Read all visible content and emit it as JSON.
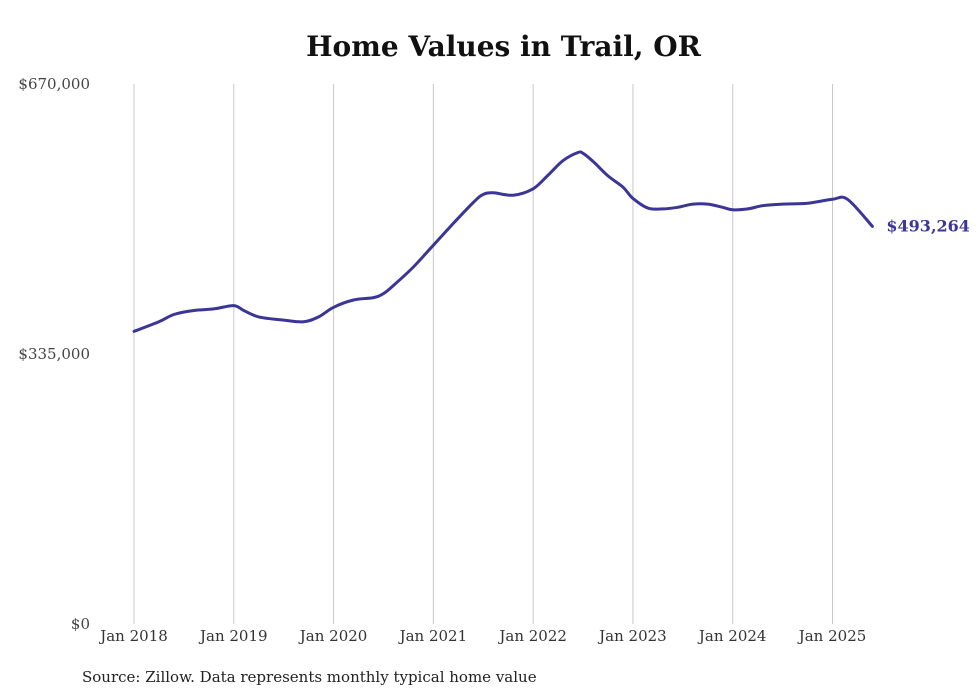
{
  "chart_data": {
    "type": "line",
    "title": "Home Values in Trail, OR",
    "xlabel": "",
    "ylabel": "",
    "ylim": [
      0,
      670000
    ],
    "y_ticks": [
      {
        "value": 670000,
        "label": "$670,000"
      },
      {
        "value": 335000,
        "label": "$335,000"
      },
      {
        "value": 0,
        "label": "$0"
      }
    ],
    "x_ticks": [
      {
        "value": 2018.0,
        "label": "Jan 2018"
      },
      {
        "value": 2019.0,
        "label": "Jan 2019"
      },
      {
        "value": 2020.0,
        "label": "Jan 2020"
      },
      {
        "value": 2021.0,
        "label": "Jan 2021"
      },
      {
        "value": 2022.0,
        "label": "Jan 2022"
      },
      {
        "value": 2023.0,
        "label": "Jan 2023"
      },
      {
        "value": 2024.0,
        "label": "Jan 2024"
      },
      {
        "value": 2025.0,
        "label": "Jan 2025"
      }
    ],
    "grid": "vertical",
    "line_color": "#3a3596",
    "series": [
      {
        "name": "",
        "x": [
          2018.0,
          2018.25,
          2018.4,
          2018.6,
          2018.8,
          2019.0,
          2019.1,
          2019.25,
          2019.5,
          2019.7,
          2019.85,
          2020.0,
          2020.2,
          2020.4,
          2020.5,
          2020.6,
          2020.8,
          2021.0,
          2021.2,
          2021.4,
          2021.5,
          2021.6,
          2021.8,
          2022.0,
          2022.15,
          2022.3,
          2022.45,
          2022.5,
          2022.6,
          2022.75,
          2022.9,
          2023.0,
          2023.15,
          2023.3,
          2023.45,
          2023.6,
          2023.75,
          2023.9,
          2024.0,
          2024.15,
          2024.3,
          2024.5,
          2024.75,
          2025.0,
          2025.15,
          2025.4
        ],
        "values": [
          363000,
          375000,
          384000,
          389000,
          391000,
          395000,
          389000,
          381000,
          377000,
          375000,
          381000,
          393000,
          402000,
          405000,
          410000,
          420000,
          443000,
          470000,
          497000,
          523000,
          533000,
          535000,
          532000,
          540000,
          557000,
          575000,
          585000,
          584000,
          574000,
          556000,
          542000,
          528000,
          516000,
          515000,
          517000,
          521000,
          521000,
          517000,
          514000,
          515000,
          519000,
          521000,
          522000,
          527000,
          527000,
          493264
        ]
      }
    ],
    "end_label": "$493,264"
  },
  "source_text": "Source: Zillow. Data represents monthly typical home value"
}
